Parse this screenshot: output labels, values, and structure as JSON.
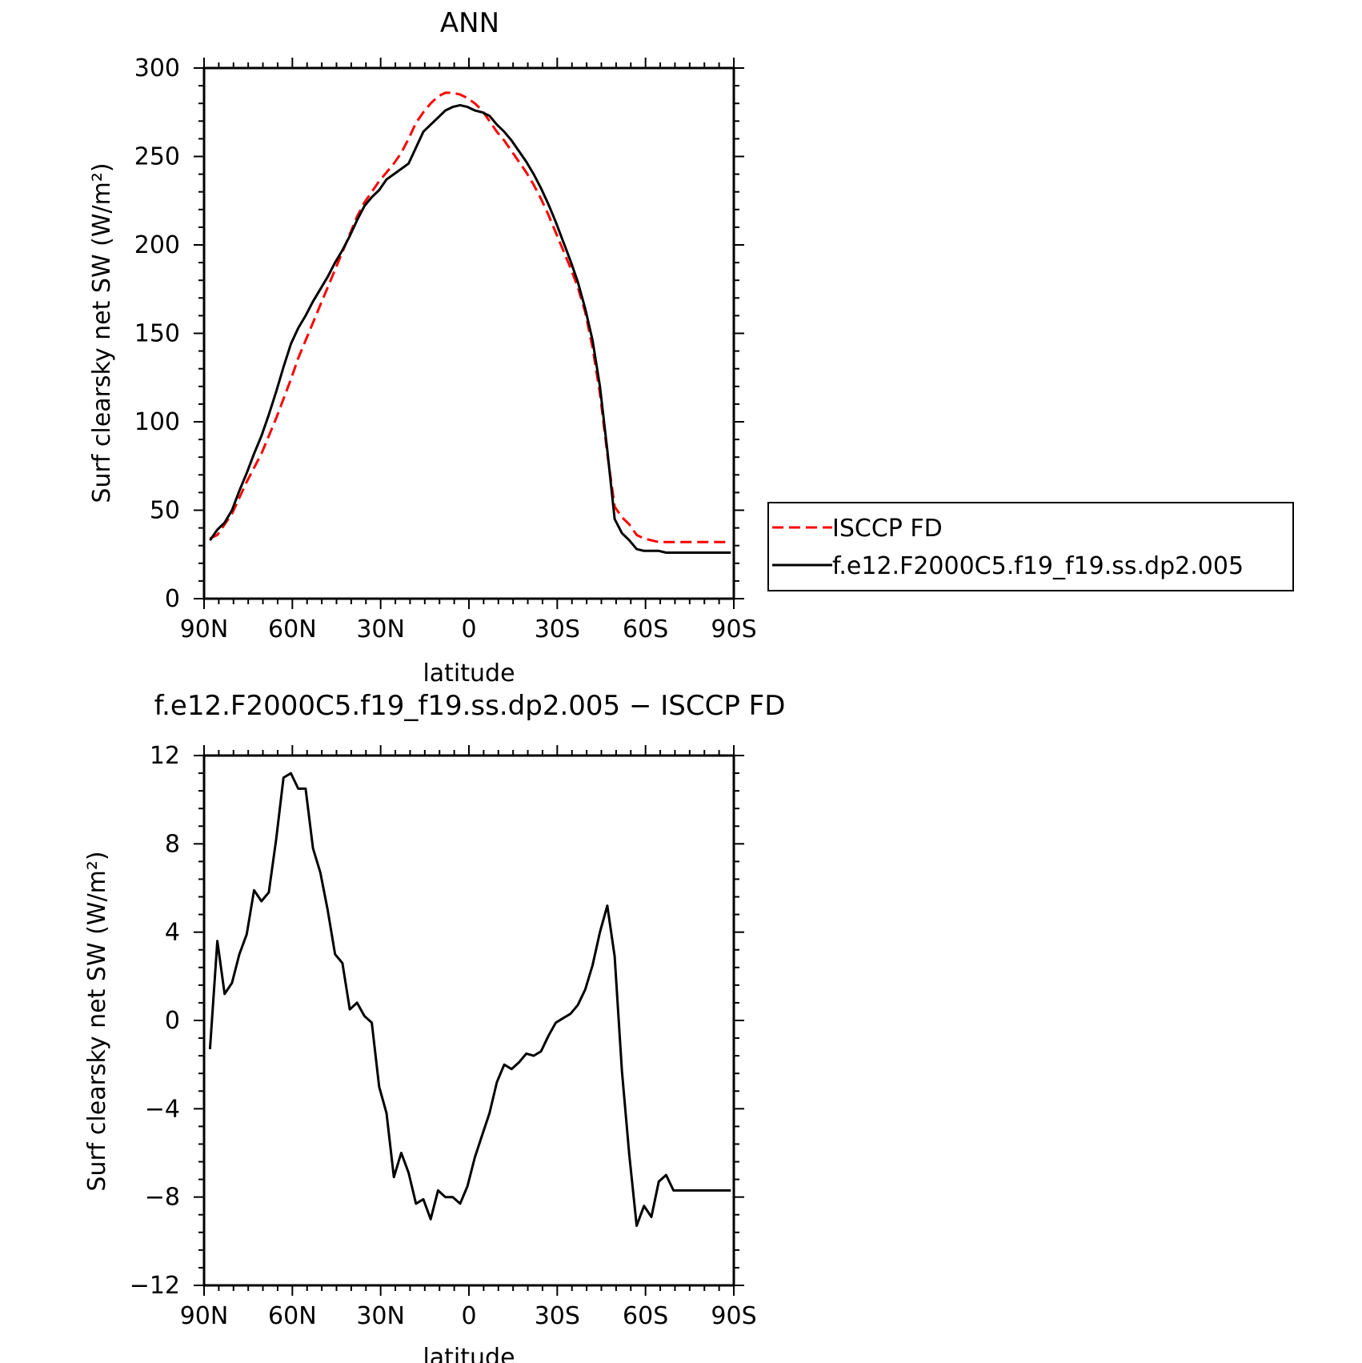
{
  "chart_data": [
    {
      "type": "line",
      "title": "ANN",
      "xlabel": "latitude",
      "ylabel": "Surf clearsky net SW (W/m²)",
      "xlim": [
        90,
        -90
      ],
      "ylim": [
        0,
        300
      ],
      "x_ticks": [
        90,
        60,
        30,
        0,
        -30,
        -60,
        -90
      ],
      "x_tick_labels": [
        "90N",
        "60N",
        "30N",
        "0",
        "30S",
        "60S",
        "90S"
      ],
      "y_ticks": [
        0,
        50,
        100,
        150,
        200,
        250,
        300
      ],
      "y_tick_labels": [
        "0",
        "50",
        "100",
        "150",
        "200",
        "250",
        "300"
      ],
      "grid": false,
      "legend": "right",
      "series": [
        {
          "name": "ISCCP FD",
          "color": "#ff0000",
          "dash": "dashed",
          "x": [
            88,
            85.5,
            83,
            80.5,
            78,
            75.5,
            73,
            70.5,
            68,
            65.5,
            63,
            60.5,
            58,
            55.5,
            53,
            50.5,
            48,
            45.5,
            43,
            40.5,
            38,
            35.5,
            33,
            30.5,
            28,
            25.5,
            23,
            20.5,
            18,
            15.5,
            13,
            10.5,
            8,
            5.5,
            3,
            0.5,
            -2,
            -4.5,
            -7,
            -9.5,
            -12,
            -14.5,
            -17,
            -19.5,
            -22,
            -24.5,
            -27,
            -29.5,
            -32,
            -34.5,
            -37,
            -39.5,
            -42,
            -44.5,
            -47,
            -49.5,
            -52,
            -54.5,
            -57,
            -59.5,
            -62,
            -64.5,
            -67,
            -69.5,
            -72,
            -74.5,
            -77,
            -79.5,
            -82,
            -84.5,
            -87,
            -89
          ],
          "y": [
            34,
            36,
            42,
            48,
            57,
            66,
            74,
            82,
            92,
            102,
            113,
            124,
            136,
            146,
            156,
            166,
            176,
            186,
            196,
            206,
            216,
            224,
            230,
            236,
            241,
            246,
            252,
            260,
            269,
            275,
            280,
            284,
            286,
            286,
            285,
            283,
            280,
            276,
            270,
            264,
            259,
            253,
            247,
            241,
            234,
            226,
            217,
            207,
            197,
            187,
            176,
            162,
            142,
            116,
            82,
            52,
            46,
            42,
            36,
            34,
            33,
            32,
            32,
            32,
            32,
            32,
            32,
            32,
            32,
            32,
            32,
            32
          ],
          "x_note": ""
        },
        {
          "name": "f.e12.F2000C5.f19_f19.ss.dp2.005",
          "color": "#000000",
          "dash": "solid",
          "x": [
            88,
            85.5,
            83,
            80.5,
            78,
            75.5,
            73,
            70.5,
            68,
            65.5,
            63,
            60.5,
            58,
            55.5,
            53,
            50.5,
            48,
            45.5,
            43,
            40.5,
            38,
            35.5,
            33,
            30.5,
            28,
            25.5,
            23,
            20.5,
            18,
            15.5,
            13,
            10.5,
            8,
            5.5,
            3,
            0.5,
            -2,
            -4.5,
            -7,
            -9.5,
            -12,
            -14.5,
            -17,
            -19.5,
            -22,
            -24.5,
            -27,
            -29.5,
            -32,
            -34.5,
            -37,
            -39.5,
            -42,
            -44.5,
            -47,
            -49.5,
            -52,
            -54.5,
            -57,
            -59.5,
            -62,
            -64.5,
            -67,
            -69.5,
            -72,
            -74.5,
            -77,
            -79.5,
            -82,
            -84.5,
            -87,
            -89
          ],
          "y": [
            33,
            39,
            43,
            50,
            61,
            71,
            82,
            92,
            104,
            117,
            131,
            144,
            153,
            160,
            168,
            175,
            182,
            190,
            197,
            205,
            214,
            222,
            227,
            231,
            237,
            240,
            243,
            246,
            255,
            264,
            268,
            272,
            276,
            278,
            279,
            278,
            276,
            275,
            273,
            268,
            264,
            259,
            253,
            247,
            240,
            232,
            223,
            213,
            202,
            191,
            179,
            164,
            146,
            120,
            84,
            45,
            37,
            33,
            28,
            27,
            27,
            27,
            26,
            26,
            26,
            26,
            26,
            26,
            26,
            26,
            26,
            26
          ],
          "x_note": ""
        }
      ]
    },
    {
      "type": "line",
      "title": "f.e12.F2000C5.f19_f19.ss.dp2.005 − ISCCP FD",
      "xlabel": "latitude",
      "ylabel": "Surf clearsky net SW (W/m²)",
      "xlim": [
        90,
        -90
      ],
      "ylim": [
        -12,
        12
      ],
      "x_ticks": [
        90,
        60,
        30,
        0,
        -30,
        -60,
        -90
      ],
      "x_tick_labels": [
        "90N",
        "60N",
        "30N",
        "0",
        "30S",
        "60S",
        "90S"
      ],
      "y_ticks": [
        -12,
        -8,
        -4,
        0,
        4,
        8,
        12
      ],
      "y_tick_labels": [
        "−12",
        "−8",
        "−4",
        "0",
        "4",
        "8",
        "12"
      ],
      "grid": false,
      "series": [
        {
          "color": "#000000",
          "dash": "solid",
          "x": [
            88,
            85.5,
            83,
            80.5,
            78,
            75.5,
            73,
            70.5,
            68,
            65.5,
            63,
            60.5,
            58,
            55.5,
            53,
            50.5,
            48,
            45.5,
            43,
            40.5,
            38,
            35.5,
            33,
            30.5,
            28,
            25.5,
            23,
            20.5,
            18,
            15.5,
            13,
            10.5,
            8,
            5.5,
            3,
            0.5,
            -2,
            -4.5,
            -7,
            -9.5,
            -12,
            -14.5,
            -17,
            -19.5,
            -22,
            -24.5,
            -27,
            -29.5,
            -32,
            -34.5,
            -37,
            -39.5,
            -42,
            -44.5,
            -47,
            -49.5,
            -52,
            -54.5,
            -57,
            -59.5,
            -62,
            -64.5,
            -67,
            -69.5,
            -72,
            -74.5,
            -77,
            -79.5,
            -82,
            -84.5,
            -87,
            -89
          ],
          "y": [
            -1.3,
            3.6,
            1.2,
            1.7,
            3.0,
            3.9,
            5.9,
            5.4,
            5.8,
            8.2,
            11.0,
            11.2,
            10.5,
            10.5,
            7.8,
            6.7,
            5.0,
            3.0,
            2.6,
            0.5,
            0.8,
            0.2,
            -0.1,
            -3.0,
            -4.2,
            -7.1,
            -6.0,
            -6.9,
            -8.3,
            -8.1,
            -9.0,
            -7.7,
            -8.0,
            -8.0,
            -8.3,
            -7.5,
            -6.2,
            -5.2,
            -4.2,
            -2.8,
            -2.0,
            -2.2,
            -1.9,
            -1.5,
            -1.6,
            -1.4,
            -0.7,
            -0.1,
            0.1,
            0.3,
            0.7,
            1.4,
            2.5,
            4.0,
            5.2,
            2.9,
            -2.3,
            -6.1,
            -9.3,
            -8.4,
            -8.9,
            -7.3,
            -7.0,
            -7.7,
            -7.7,
            -7.7,
            -7.7,
            -7.7,
            -7.7,
            -7.7,
            -7.7,
            -7.7
          ],
          "x_note": ""
        }
      ]
    }
  ]
}
